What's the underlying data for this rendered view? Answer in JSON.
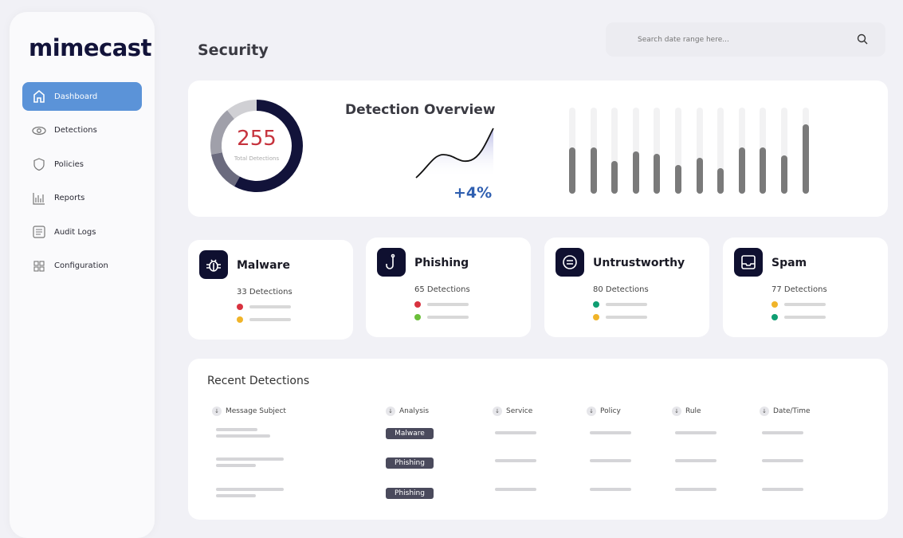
{
  "brand": {
    "logo": "mimecast"
  },
  "sidebar": {
    "items": [
      {
        "label": "Dashboard",
        "icon": "home-icon",
        "active": true
      },
      {
        "label": "Detections",
        "icon": "eye-icon"
      },
      {
        "label": "Policies",
        "icon": "shield-icon"
      },
      {
        "label": "Reports",
        "icon": "bar-chart-icon"
      },
      {
        "label": "Audit Logs",
        "icon": "document-icon"
      },
      {
        "label": "Configuration",
        "icon": "grid-icon"
      }
    ]
  },
  "header": {
    "title": "Security",
    "search_placeholder": "Search date range here..."
  },
  "overview": {
    "total": "255",
    "total_label": "Total Detections",
    "title": "Detection Overview",
    "change": "+4%",
    "donut_fractions": [
      0.58,
      0.14,
      0.17,
      0.11
    ],
    "donut_colors": [
      "#12133a",
      "#6b6b7e",
      "#a0a0aa",
      "#d0d0d4"
    ],
    "bar_levels": [
      0.54,
      0.54,
      0.38,
      0.49,
      0.46,
      0.33,
      0.42,
      0.3,
      0.54,
      0.54,
      0.44,
      0.81
    ]
  },
  "categories": [
    {
      "name": "Malware",
      "count": "33 Detections",
      "icon": "bug-icon",
      "dots": [
        "#d8323f",
        "#f0b429"
      ]
    },
    {
      "name": "Phishing",
      "count": "65 Detections",
      "icon": "hook-icon",
      "dots": [
        "#d8323f",
        "#6bbf3a"
      ]
    },
    {
      "name": "Untrustworthy",
      "count": "80 Detections",
      "icon": "warning-badge-icon",
      "dots": [
        "#0f9e72",
        "#f0b429"
      ]
    },
    {
      "name": "Spam",
      "count": "77 Detections",
      "icon": "inbox-icon",
      "dots": [
        "#f0b429",
        "#0f9e72"
      ]
    }
  ],
  "recent": {
    "title": "Recent Detections",
    "columns": [
      "Message Subject",
      "Analysis",
      "Service",
      "Policy",
      "Rule",
      "Date/Time"
    ],
    "rows": [
      {
        "analysis": "Malware"
      },
      {
        "analysis": "Phishing"
      },
      {
        "analysis": "Phishing"
      }
    ]
  }
}
